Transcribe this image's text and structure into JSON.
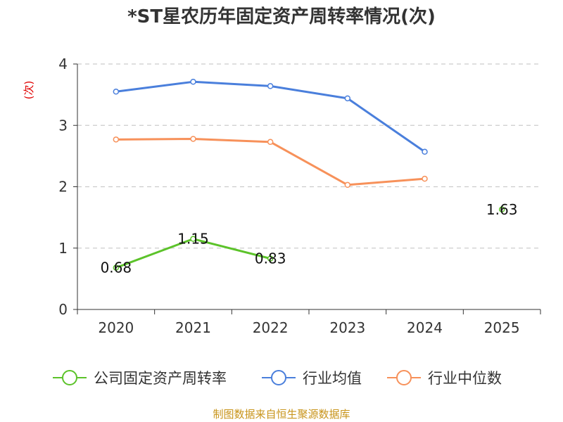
{
  "chart_data": {
    "type": "line",
    "title": "*ST星农历年固定资产周转率情况(次)",
    "ylabel": "(次)",
    "ylim": [
      0,
      4
    ],
    "yticks": [
      0,
      1,
      2,
      3,
      4
    ],
    "grid": true,
    "legend_position": "bottom",
    "categories": [
      "2020",
      "2021",
      "2022",
      "2023",
      "2024",
      "2025"
    ],
    "series": [
      {
        "name": "公司固定资产周转率",
        "color": "#5cc32a",
        "values": [
          0.68,
          1.15,
          0.83,
          null,
          null,
          1.63
        ],
        "labels": [
          "0.68",
          "1.15",
          "0.83",
          null,
          null,
          "1.63"
        ]
      },
      {
        "name": "行业均值",
        "color": "#4a7fdc",
        "values": [
          3.55,
          3.71,
          3.64,
          3.44,
          2.57,
          null
        ]
      },
      {
        "name": "行业中位数",
        "color": "#f7915a",
        "values": [
          2.77,
          2.78,
          2.73,
          2.03,
          2.13,
          null
        ]
      }
    ]
  },
  "footer": "制图数据来自恒生聚源数据库"
}
